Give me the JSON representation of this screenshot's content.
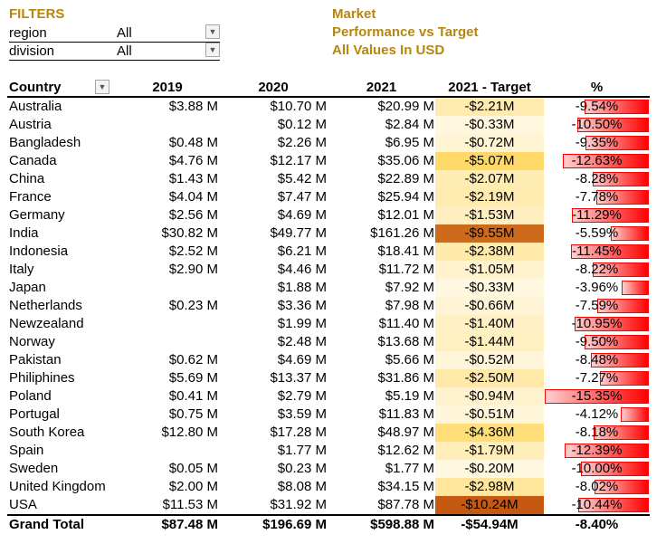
{
  "filters": {
    "title": "FILTERS",
    "region_label": "region",
    "region_value": "All",
    "division_label": "division",
    "division_value": "All"
  },
  "header": {
    "line1": "Market",
    "line2": "Performance vs Target",
    "line3": "All Values In USD"
  },
  "table": {
    "columns": [
      "Country",
      "2019",
      "2020",
      "2021",
      "2021 - Target",
      "%"
    ],
    "rows": [
      {
        "country": "Australia",
        "y2019": "$3.88 M",
        "y2020": "$10.70 M",
        "y2021": "$20.99 M",
        "target": "-$2.21M",
        "pct": "-9.54%",
        "pct_value": -9.54,
        "target_value": -2.21
      },
      {
        "country": "Austria",
        "y2019": "",
        "y2020": "$0.12 M",
        "y2021": "$2.84 M",
        "target": "-$0.33M",
        "pct": "-10.50%",
        "pct_value": -10.5,
        "target_value": -0.33
      },
      {
        "country": "Bangladesh",
        "y2019": "$0.48 M",
        "y2020": "$2.26 M",
        "y2021": "$6.95 M",
        "target": "-$0.72M",
        "pct": "-9.35%",
        "pct_value": -9.35,
        "target_value": -0.72
      },
      {
        "country": "Canada",
        "y2019": "$4.76 M",
        "y2020": "$12.17 M",
        "y2021": "$35.06 M",
        "target": "-$5.07M",
        "pct": "-12.63%",
        "pct_value": -12.63,
        "target_value": -5.07
      },
      {
        "country": "China",
        "y2019": "$1.43 M",
        "y2020": "$5.42 M",
        "y2021": "$22.89 M",
        "target": "-$2.07M",
        "pct": "-8.28%",
        "pct_value": -8.28,
        "target_value": -2.07
      },
      {
        "country": "France",
        "y2019": "$4.04 M",
        "y2020": "$7.47 M",
        "y2021": "$25.94 M",
        "target": "-$2.19M",
        "pct": "-7.78%",
        "pct_value": -7.78,
        "target_value": -2.19
      },
      {
        "country": "Germany",
        "y2019": "$2.56 M",
        "y2020": "$4.69 M",
        "y2021": "$12.01 M",
        "target": "-$1.53M",
        "pct": "-11.29%",
        "pct_value": -11.29,
        "target_value": -1.53
      },
      {
        "country": "India",
        "y2019": "$30.82 M",
        "y2020": "$49.77 M",
        "y2021": "$161.26 M",
        "target": "-$9.55M",
        "pct": "-5.59%",
        "pct_value": -5.59,
        "target_value": -9.55
      },
      {
        "country": "Indonesia",
        "y2019": "$2.52 M",
        "y2020": "$6.21 M",
        "y2021": "$18.41 M",
        "target": "-$2.38M",
        "pct": "-11.45%",
        "pct_value": -11.45,
        "target_value": -2.38
      },
      {
        "country": "Italy",
        "y2019": "$2.90 M",
        "y2020": "$4.46 M",
        "y2021": "$11.72 M",
        "target": "-$1.05M",
        "pct": "-8.22%",
        "pct_value": -8.22,
        "target_value": -1.05
      },
      {
        "country": "Japan",
        "y2019": "",
        "y2020": "$1.88 M",
        "y2021": "$7.92 M",
        "target": "-$0.33M",
        "pct": "-3.96%",
        "pct_value": -3.96,
        "target_value": -0.33
      },
      {
        "country": "Netherlands",
        "y2019": "$0.23 M",
        "y2020": "$3.36 M",
        "y2021": "$7.98 M",
        "target": "-$0.66M",
        "pct": "-7.59%",
        "pct_value": -7.59,
        "target_value": -0.66
      },
      {
        "country": "Newzealand",
        "y2019": "",
        "y2020": "$1.99 M",
        "y2021": "$11.40 M",
        "target": "-$1.40M",
        "pct": "-10.95%",
        "pct_value": -10.95,
        "target_value": -1.4
      },
      {
        "country": "Norway",
        "y2019": "",
        "y2020": "$2.48 M",
        "y2021": "$13.68 M",
        "target": "-$1.44M",
        "pct": "-9.50%",
        "pct_value": -9.5,
        "target_value": -1.44
      },
      {
        "country": "Pakistan",
        "y2019": "$0.62 M",
        "y2020": "$4.69 M",
        "y2021": "$5.66 M",
        "target": "-$0.52M",
        "pct": "-8.48%",
        "pct_value": -8.48,
        "target_value": -0.52
      },
      {
        "country": "Philiphines",
        "y2019": "$5.69 M",
        "y2020": "$13.37 M",
        "y2021": "$31.86 M",
        "target": "-$2.50M",
        "pct": "-7.27%",
        "pct_value": -7.27,
        "target_value": -2.5
      },
      {
        "country": "Poland",
        "y2019": "$0.41 M",
        "y2020": "$2.79 M",
        "y2021": "$5.19 M",
        "target": "-$0.94M",
        "pct": "-15.35%",
        "pct_value": -15.35,
        "target_value": -0.94
      },
      {
        "country": "Portugal",
        "y2019": "$0.75 M",
        "y2020": "$3.59 M",
        "y2021": "$11.83 M",
        "target": "-$0.51M",
        "pct": "-4.12%",
        "pct_value": -4.12,
        "target_value": -0.51
      },
      {
        "country": "South Korea",
        "y2019": "$12.80 M",
        "y2020": "$17.28 M",
        "y2021": "$48.97 M",
        "target": "-$4.36M",
        "pct": "-8.18%",
        "pct_value": -8.18,
        "target_value": -4.36
      },
      {
        "country": "Spain",
        "y2019": "",
        "y2020": "$1.77 M",
        "y2021": "$12.62 M",
        "target": "-$1.79M",
        "pct": "-12.39%",
        "pct_value": -12.39,
        "target_value": -1.79
      },
      {
        "country": "Sweden",
        "y2019": "$0.05 M",
        "y2020": "$0.23 M",
        "y2021": "$1.77 M",
        "target": "-$0.20M",
        "pct": "-10.00%",
        "pct_value": -10.0,
        "target_value": -0.2
      },
      {
        "country": "United Kingdom",
        "y2019": "$2.00 M",
        "y2020": "$8.08 M",
        "y2021": "$34.15 M",
        "target": "-$2.98M",
        "pct": "-8.02%",
        "pct_value": -8.02,
        "target_value": -2.98
      },
      {
        "country": "USA",
        "y2019": "$11.53 M",
        "y2020": "$31.92 M",
        "y2021": "$87.78 M",
        "target": "-$10.24M",
        "pct": "-10.44%",
        "pct_value": -10.44,
        "target_value": -10.24
      }
    ],
    "total": {
      "country": "Grand Total",
      "y2019": "$87.48 M",
      "y2020": "$196.69 M",
      "y2021": "$598.88 M",
      "target": "-$54.94M",
      "pct": "-8.40%"
    }
  },
  "colors": {
    "accent_gold": "#b8860b",
    "heat_low": "#fff9e6",
    "heat_high": "#c65911",
    "bar_red": "#ff0000"
  }
}
